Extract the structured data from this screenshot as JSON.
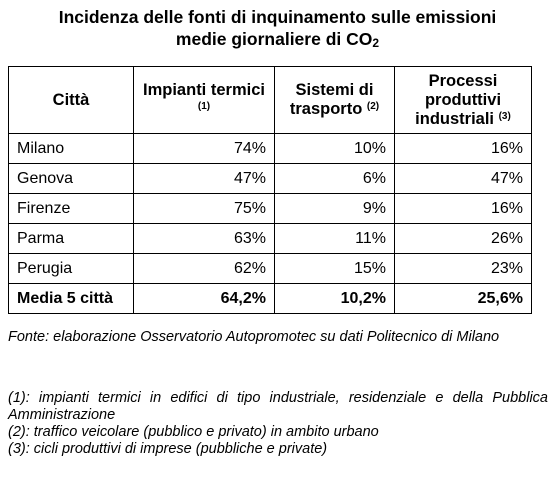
{
  "title_line1": "Incidenza delle fonti di inquinamento sulle emissioni",
  "title_line2": "medie giornaliere di CO",
  "title_sub": "2",
  "table": {
    "headers": [
      {
        "text": "Città",
        "note": ""
      },
      {
        "text": "Impianti termici",
        "note": "(1)"
      },
      {
        "text": "Sistemi di trasporto",
        "note": "(2)"
      },
      {
        "text": "Processi produttivi industriali",
        "note": "(3)"
      }
    ],
    "rows": [
      {
        "city": "Milano",
        "values": [
          "74%",
          "10%",
          "16%"
        ]
      },
      {
        "city": "Genova",
        "values": [
          "47%",
          "6%",
          "47%"
        ]
      },
      {
        "city": "Firenze",
        "values": [
          "75%",
          "9%",
          "16%"
        ]
      },
      {
        "city": "Parma",
        "values": [
          "63%",
          "11%",
          "26%"
        ]
      },
      {
        "city": "Perugia",
        "values": [
          "62%",
          "15%",
          "23%"
        ]
      }
    ],
    "average": {
      "city": "Media 5 città",
      "values": [
        "64,2%",
        "10,2%",
        "25,6%"
      ]
    }
  },
  "source": "Fonte: elaborazione Osservatorio Autopromotec su dati Politecnico di Milano",
  "notes": [
    "(1): impianti termici in edifici di tipo industriale, residenziale e della Pubblica Amministrazione",
    "(2): traffico veicolare (pubblico e privato) in ambito urbano",
    "(3): cicli produttivi di imprese (pubbliche e private)"
  ]
}
